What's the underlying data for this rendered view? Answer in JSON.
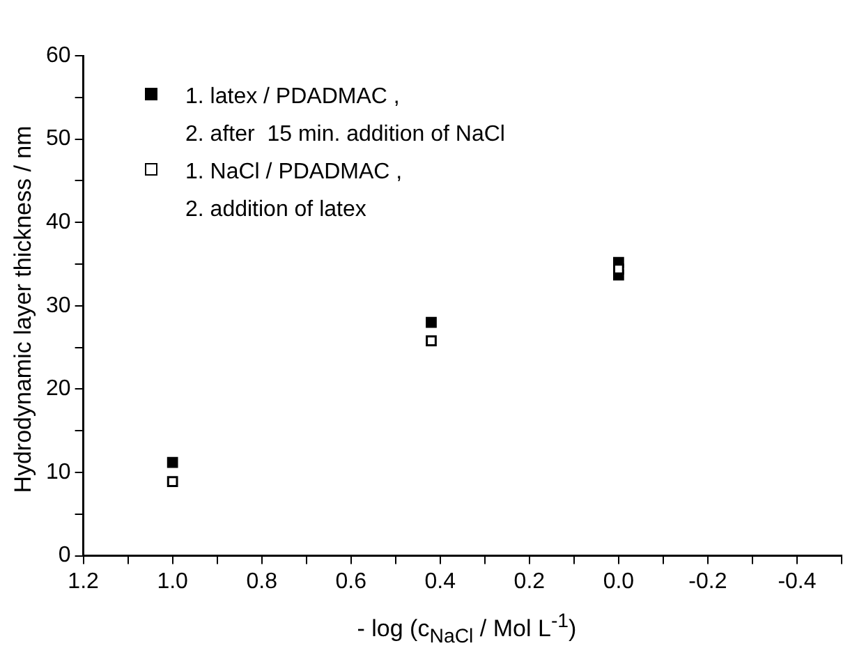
{
  "chart_data": {
    "type": "scatter",
    "xlabel": "- log (c$_{NaCl}$ / Mol L$^{-1}$)",
    "ylabel": "Hydrodynamic layer thickness / nm",
    "xlim": [
      1.2,
      -0.5
    ],
    "xticks": [
      1.2,
      {
        "value": 1.1,
        "label": null
      },
      {
        "value": 1,
        "label": "1.0"
      },
      {
        "value": 0.9,
        "label": null
      },
      0.8,
      {
        "value": 0.7,
        "label": null
      },
      0.6,
      {
        "value": 0.5,
        "label": null
      },
      0.4,
      {
        "value": 0.3,
        "label": null
      },
      0.2,
      {
        "value": 0.1,
        "label": null
      },
      {
        "value": 0,
        "label": "0.0"
      },
      {
        "value": -0.1,
        "label": null
      },
      -0.2,
      {
        "value": -0.3,
        "label": null
      },
      -0.4,
      {
        "value": -0.5,
        "label": null
      }
    ],
    "ylim": [
      0,
      60
    ],
    "yticks": [
      0,
      {
        "value": 5,
        "label": null
      },
      10,
      {
        "value": 15,
        "label": null
      },
      20,
      {
        "value": 25,
        "label": null
      },
      30,
      {
        "value": 35,
        "label": null
      },
      40,
      {
        "value": 45,
        "label": null
      },
      50,
      {
        "value": 55,
        "label": null
      },
      60
    ],
    "marker": "square",
    "legend": "top left",
    "grid": false,
    "series": [
      {
        "name": "1. latex / PDADMAC ,\n2. after  15 min. addition of NaCl",
        "color": "#000000",
        "x": [
          1.0,
          0.42,
          0,
          0
        ],
        "values": [
          11.2,
          28.0,
          35.2,
          33.7
        ]
      },
      {
        "name": "1. NaCl / PDADMAC ,\n2. addition of latex",
        "color": "#ffffff",
        "x": [
          1.0,
          0.42,
          0
        ],
        "values": [
          8.9,
          25.8,
          34.4
        ]
      }
    ]
  }
}
